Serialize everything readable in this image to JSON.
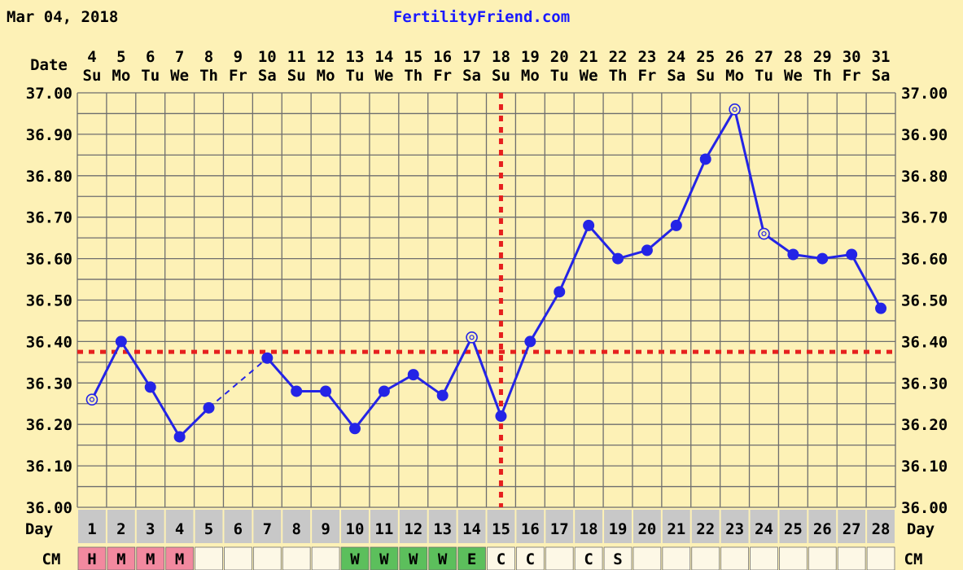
{
  "header": {
    "date": "Mar 04, 2018",
    "brand": "FertilityFriend.com"
  },
  "labels": {
    "date_row": "Date",
    "day_row": "Day",
    "cm_row": "CM"
  },
  "colors": {
    "background": "#fdf1b6",
    "grid": "#6e6e6e",
    "line": "#2424e6",
    "coverline": "#e6201e",
    "menses": "#f2899f",
    "watery": "#5cbf5c",
    "day_cells": "#c8c8c8",
    "blank_cells": "#fdf8e6"
  },
  "columns": [
    {
      "date": "4",
      "dow": "Su",
      "day": "1",
      "cm": "H"
    },
    {
      "date": "5",
      "dow": "Mo",
      "day": "2",
      "cm": "M"
    },
    {
      "date": "6",
      "dow": "Tu",
      "day": "3",
      "cm": "M"
    },
    {
      "date": "7",
      "dow": "We",
      "day": "4",
      "cm": "M"
    },
    {
      "date": "8",
      "dow": "Th",
      "day": "5",
      "cm": ""
    },
    {
      "date": "9",
      "dow": "Fr",
      "day": "6",
      "cm": ""
    },
    {
      "date": "10",
      "dow": "Sa",
      "day": "7",
      "cm": ""
    },
    {
      "date": "11",
      "dow": "Su",
      "day": "8",
      "cm": ""
    },
    {
      "date": "12",
      "dow": "Mo",
      "day": "9",
      "cm": ""
    },
    {
      "date": "13",
      "dow": "Tu",
      "day": "10",
      "cm": "W"
    },
    {
      "date": "14",
      "dow": "We",
      "day": "11",
      "cm": "W"
    },
    {
      "date": "15",
      "dow": "Th",
      "day": "12",
      "cm": "W"
    },
    {
      "date": "16",
      "dow": "Fr",
      "day": "13",
      "cm": "W"
    },
    {
      "date": "17",
      "dow": "Sa",
      "day": "14",
      "cm": "E"
    },
    {
      "date": "18",
      "dow": "Su",
      "day": "15",
      "cm": "C"
    },
    {
      "date": "19",
      "dow": "Mo",
      "day": "16",
      "cm": "C"
    },
    {
      "date": "20",
      "dow": "Tu",
      "day": "17",
      "cm": ""
    },
    {
      "date": "21",
      "dow": "We",
      "day": "18",
      "cm": "C"
    },
    {
      "date": "22",
      "dow": "Th",
      "day": "19",
      "cm": "S"
    },
    {
      "date": "23",
      "dow": "Fr",
      "day": "20",
      "cm": ""
    },
    {
      "date": "24",
      "dow": "Sa",
      "day": "21",
      "cm": ""
    },
    {
      "date": "25",
      "dow": "Su",
      "day": "22",
      "cm": ""
    },
    {
      "date": "26",
      "dow": "Mo",
      "day": "23",
      "cm": ""
    },
    {
      "date": "27",
      "dow": "Tu",
      "day": "24",
      "cm": ""
    },
    {
      "date": "28",
      "dow": "We",
      "day": "25",
      "cm": ""
    },
    {
      "date": "29",
      "dow": "Th",
      "day": "26",
      "cm": ""
    },
    {
      "date": "30",
      "dow": "Fr",
      "day": "27",
      "cm": ""
    },
    {
      "date": "31",
      "dow": "Sa",
      "day": "28",
      "cm": ""
    }
  ],
  "chart_data": {
    "type": "line",
    "title": "",
    "xlabel": "Day",
    "ylabel": "",
    "ylim": [
      36.0,
      37.0
    ],
    "y_ticks": [
      "36.00",
      "36.10",
      "36.20",
      "36.30",
      "36.40",
      "36.50",
      "36.60",
      "36.70",
      "36.80",
      "36.90",
      "37.00"
    ],
    "grid": true,
    "coverline": 36.375,
    "ovulation_day": 15,
    "series": [
      {
        "x": [
          1,
          2,
          3,
          4,
          5,
          7,
          8,
          9,
          10,
          11,
          12,
          13,
          14,
          15,
          16,
          17,
          18,
          19,
          20,
          21,
          22,
          23,
          24,
          25,
          26,
          27,
          28
        ],
        "values": [
          36.26,
          36.4,
          36.29,
          36.17,
          36.24,
          36.36,
          36.28,
          36.28,
          36.19,
          36.28,
          36.32,
          36.27,
          36.41,
          36.22,
          36.4,
          36.52,
          36.68,
          36.6,
          36.62,
          36.68,
          36.84,
          36.96,
          36.66,
          36.61,
          36.6,
          36.61,
          36.48
        ],
        "open_markers": [
          1,
          14,
          23,
          24
        ],
        "gap": [
          5,
          7
        ]
      }
    ]
  }
}
